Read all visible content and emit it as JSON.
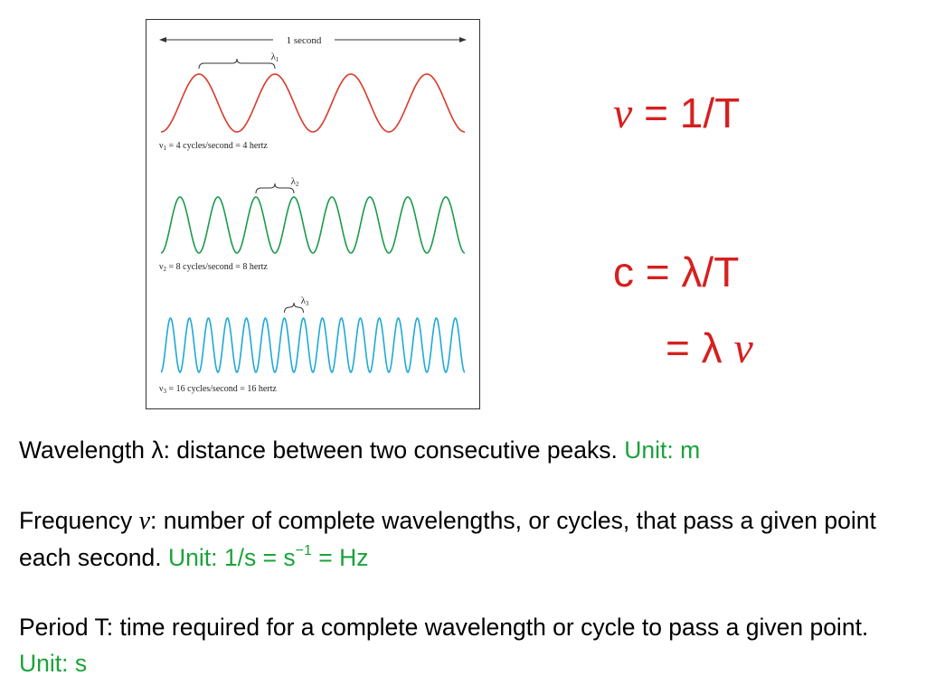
{
  "figure": {
    "duration_label": "1 second",
    "waves": [
      {
        "lambda_label": "λ",
        "lambda_sub": "1",
        "caption_nu": "ν",
        "caption_sub": "1",
        "caption_text": " = 4 cycles/second = 4 hertz",
        "cycles": 4,
        "color": "#d93a2b"
      },
      {
        "lambda_label": "λ",
        "lambda_sub": "2",
        "caption_nu": "ν",
        "caption_sub": "2",
        "caption_text": " = 8 cycles/second = 8 hertz",
        "cycles": 8,
        "color": "#1c9a4c"
      },
      {
        "lambda_label": "λ",
        "lambda_sub": "3",
        "caption_nu": "ν",
        "caption_sub": "3",
        "caption_text": " = 16 cycles/second = 16 hertz",
        "cycles": 16,
        "color": "#1fa9d6"
      }
    ]
  },
  "formulas": {
    "f1_symbol": "ν",
    "f1_rest": " = 1/T",
    "f2": "c = λ/T",
    "f3_prefix": "= λ ",
    "f3_symbol": "ν"
  },
  "definitions": {
    "wavelength": {
      "text": "Wavelength λ: distance between two consecutive peaks. ",
      "unit": "Unit: m"
    },
    "frequency": {
      "term": "Frequency ",
      "symbol": "ν",
      "text": ": number of complete wavelengths, or cycles, that pass a given point each second. ",
      "unit_prefix": "Unit: 1/s = s",
      "unit_sup": "−1",
      "unit_suffix": " = Hz"
    },
    "period": {
      "text": "Period T:  time required for a complete wavelength or cycle to pass a given point. ",
      "unit": "Unit: s"
    }
  },
  "colors": {
    "formula": "#d61f1f",
    "unit": "#1aa33a"
  }
}
